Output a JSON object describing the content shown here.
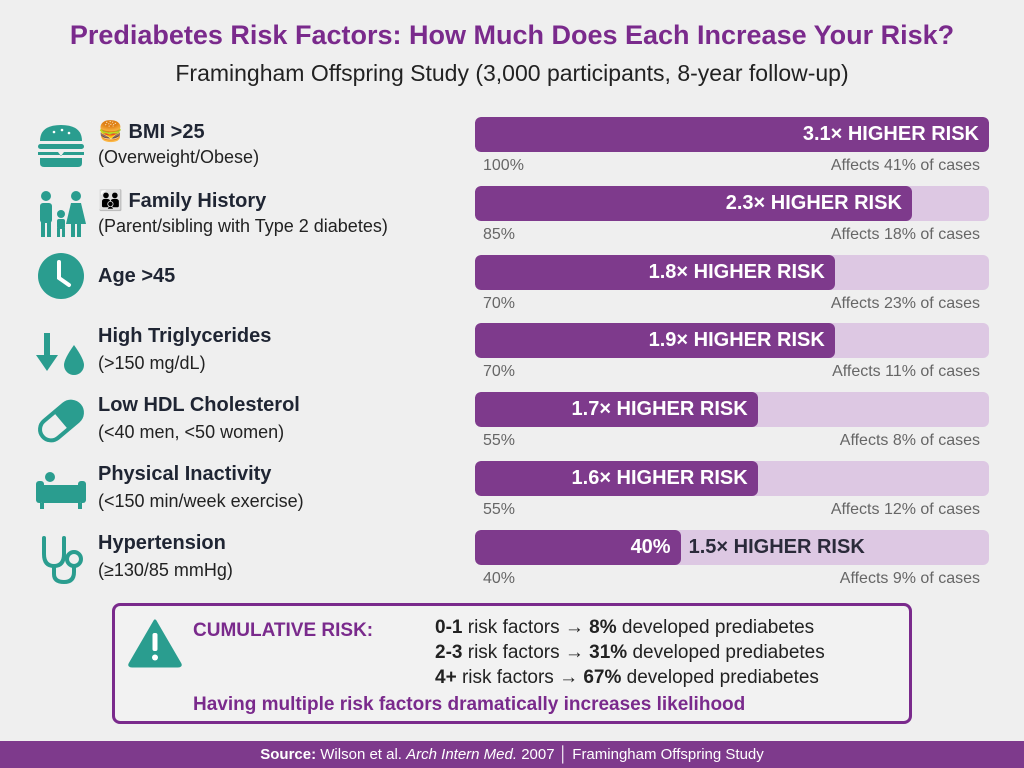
{
  "title": "Prediabetes Risk Factors: How Much Does Each Increase Your Risk?",
  "subtitle": "Framingham Offspring Study (3,000 participants, 8-year follow-up)",
  "colors": {
    "accent": "#7e3a8c",
    "track": "#ddc8e3",
    "icon": "#2a9d8f",
    "title": "#7a2a8c"
  },
  "chart_data": {
    "type": "bar",
    "orientation": "horizontal",
    "xlim": [
      0,
      100
    ],
    "categories": [
      "BMI >25",
      "Family History",
      "Age >45",
      "High Triglycerides",
      "Low HDL Cholesterol",
      "Physical Inactivity",
      "Hypertension"
    ],
    "rows": [
      {
        "emoji": "🍔",
        "label": "BMI >25",
        "sub": "(Overweight/Obese)",
        "icon": "burger-icon",
        "value": 100,
        "pct_label": "100%",
        "risk": "3.1× HIGHER RISK",
        "affects": "Affects 41% of cases"
      },
      {
        "emoji": "👪",
        "label": "Family History",
        "sub": "(Parent/sibling with Type 2 diabetes)",
        "icon": "family-icon",
        "value": 85,
        "pct_label": "85%",
        "risk": "2.3× HIGHER RISK",
        "affects": "Affects 18% of cases"
      },
      {
        "emoji": "",
        "label": "Age >45",
        "sub": "",
        "icon": "clock-icon",
        "value": 70,
        "pct_label": "70%",
        "risk": "1.8× HIGHER RISK",
        "affects": "Affects 23% of cases"
      },
      {
        "emoji": "",
        "label": "High Triglycerides",
        "sub": "(>150 mg/dL)",
        "icon": "arrow-drop-icon",
        "value": 70,
        "pct_label": "70%",
        "risk": "1.9× HIGHER RISK",
        "affects": "Affects 11% of cases"
      },
      {
        "emoji": "",
        "label": "Low HDL Cholesterol",
        "sub": "(<40 men, <50 women)",
        "icon": "pill-icon",
        "value": 55,
        "pct_label": "55%",
        "risk": "1.7× HIGHER RISK",
        "affects": "Affects 8% of cases"
      },
      {
        "emoji": "",
        "label": "Physical Inactivity",
        "sub": "(<150 min/week exercise)",
        "icon": "couch-icon",
        "value": 55,
        "pct_label": "55%",
        "risk": "1.6× HIGHER RISK",
        "affects": "Affects 12% of cases"
      },
      {
        "emoji": "",
        "label": "Hypertension",
        "sub": "(≥130/85 mmHg)",
        "icon": "stethoscope-icon",
        "value": 40,
        "pct_label": "40%",
        "in_bar": "40%",
        "risk": "1.5× HIGHER RISK",
        "affects": "Affects 9% of cases"
      }
    ]
  },
  "cumulative": {
    "title": "CUMULATIVE RISK:",
    "lines": [
      {
        "count": "0-1",
        "mid": " risk factors → ",
        "pct": "8%",
        "tail": " developed prediabetes"
      },
      {
        "count": "2-3",
        "mid": " risk factors → ",
        "pct": "31%",
        "tail": " developed prediabetes"
      },
      {
        "count": "4+",
        "mid": " risk factors → ",
        "pct": "67%",
        "tail": " developed prediabetes"
      }
    ],
    "note": "Having multiple risk factors dramatically increases likelihood",
    "icon": "warning-icon"
  },
  "footer": {
    "source_label": "Source:",
    "authors": " Wilson et al. ",
    "journal": "Arch Intern Med.",
    "rest": " 2007 │ Framingham Offspring Study"
  }
}
